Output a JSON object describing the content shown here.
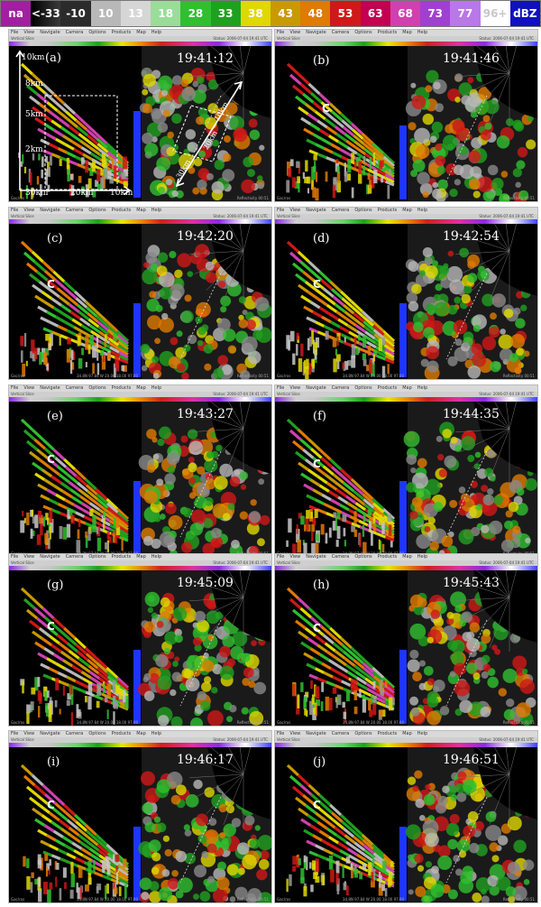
{
  "legend": {
    "cells": [
      {
        "label": "na",
        "bg": "#a020a0",
        "fg": "#ffffff"
      },
      {
        "label": "<-33",
        "bg": "#000000",
        "fg": "#ffffff"
      },
      {
        "label": "-10",
        "bg": "#2b2b2b",
        "fg": "#ffffff"
      },
      {
        "label": "10",
        "bg": "#b8b8b8",
        "fg": "#ffffff"
      },
      {
        "label": "13",
        "bg": "#d6d6d6",
        "fg": "#ffffff"
      },
      {
        "label": "18",
        "bg": "#99dd99",
        "fg": "#ffffff"
      },
      {
        "label": "28",
        "bg": "#2fbf2f",
        "fg": "#ffffff"
      },
      {
        "label": "33",
        "bg": "#20a020",
        "fg": "#ffffff"
      },
      {
        "label": "38",
        "bg": "#e0d800",
        "fg": "#ffffff"
      },
      {
        "label": "43",
        "bg": "#c89a00",
        "fg": "#ffffff"
      },
      {
        "label": "48",
        "bg": "#e07a00",
        "fg": "#ffffff"
      },
      {
        "label": "53",
        "bg": "#d01818",
        "fg": "#ffffff"
      },
      {
        "label": "63",
        "bg": "#c40050",
        "fg": "#ffffff"
      },
      {
        "label": "68",
        "bg": "#d040b0",
        "fg": "#ffffff"
      },
      {
        "label": "73",
        "bg": "#a040d0",
        "fg": "#ffffff"
      },
      {
        "label": "77",
        "bg": "#b878e8",
        "fg": "#ffffff"
      },
      {
        "label": "96+",
        "bg": "#f4f4f4",
        "fg": "#ffffff"
      },
      {
        "label": "dBZ",
        "bg": "#1010c0",
        "fg": "#ffffff"
      }
    ]
  },
  "menu": [
    "File",
    "View",
    "Navigate",
    "Camera",
    "Options",
    "Products",
    "Map",
    "Help"
  ],
  "window_title": "Vertical Slice",
  "toolbar_status": "Status: 2006-07-04 19:41 UTC",
  "panels": [
    {
      "label": "(a)",
      "time": "19:41:12",
      "c": "",
      "bottom_left": "Gac/ros",
      "bottom_right": "Reflectivity 00:51",
      "stamp": ""
    },
    {
      "label": "(b)",
      "time": "19:41:46",
      "c": "C",
      "bottom_left": "Gac/ros",
      "bottom_right": "Reflectivity 00:51",
      "stamp": ""
    },
    {
      "label": "(c)",
      "time": "19:42:20",
      "c": "C",
      "bottom_left": "Gac/ros",
      "bottom_right": "Reflectivity 00:51",
      "stamp": "34.8N 97.84 W 20.00 18.00 97.00"
    },
    {
      "label": "(d)",
      "time": "19:42:54",
      "c": "C",
      "bottom_left": "Gac/ros",
      "bottom_right": "Reflectivity 00:51",
      "stamp": "34.8N 97.84 W 20.00 18.00 97.00"
    },
    {
      "label": "(e)",
      "time": "19:43:27",
      "c": "C",
      "bottom_left": "Gac/ros",
      "bottom_right": "Reflectivity 00:51",
      "stamp": "34.8N 97.84 W 20.00 18.00 97.00"
    },
    {
      "label": "(f)",
      "time": "19:44:35",
      "c": "C",
      "bottom_left": "Gac/ros",
      "bottom_right": "Reflectivity 00:51",
      "stamp": "34.8N 97.84 W 20.00 18.00 97.00"
    },
    {
      "label": "(g)",
      "time": "19:45:09",
      "c": "C",
      "bottom_left": "Gac/ros",
      "bottom_right": "Reflectivity 00:51",
      "stamp": "34.8N 97.84 W 20.00 18.00 97.00"
    },
    {
      "label": "(h)",
      "time": "19:45:43",
      "c": "C",
      "bottom_left": "Gac/ros",
      "bottom_right": "Reflectivity 00:51",
      "stamp": "34.8N 97.84 W 20.00 18.00 97.00"
    },
    {
      "label": "(i)",
      "time": "19:46:17",
      "c": "C",
      "bottom_left": "Gac/ros",
      "bottom_right": "Reflectivity 00:51",
      "stamp": "34.8N 97.84 W 20.00 18.00 97.00"
    },
    {
      "label": "(j)",
      "time": "19:46:51",
      "c": "C",
      "bottom_left": "Gac/ros",
      "bottom_right": "Reflectivity 00:51",
      "stamp": "34.8N 97.84 W 20.00 18.00 97.00"
    }
  ],
  "annotations_a": {
    "heights": [
      "10km",
      "8km",
      "5km",
      "2km"
    ],
    "ranges": [
      "30km",
      "20km",
      "10km"
    ],
    "diag": [
      "10km",
      "20km",
      "30km"
    ]
  }
}
